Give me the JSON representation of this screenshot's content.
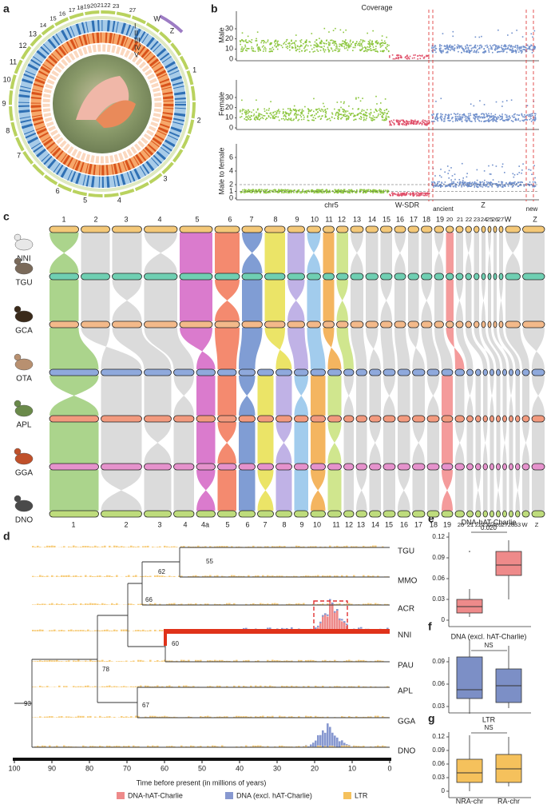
{
  "figure": {
    "panel_letters": [
      "a",
      "b",
      "c",
      "d",
      "e",
      "f",
      "g"
    ],
    "a": {
      "chromosomes": [
        "1",
        "2",
        "3",
        "4",
        "5",
        "6",
        "7",
        "8",
        "9",
        "10",
        "11",
        "12",
        "13",
        "14",
        "15",
        "16",
        "17",
        "18",
        "19",
        "20",
        "21",
        "22",
        "23",
        "27",
        "W",
        "Z"
      ],
      "tracks": [
        "I",
        "II",
        "III",
        "IV",
        "V"
      ]
    },
    "b": {
      "title": "Coverage",
      "rows": [
        {
          "label": "Male",
          "yticks": [
            "0",
            "10",
            "20",
            "30"
          ]
        },
        {
          "label": "Female",
          "yticks": [
            "0",
            "10",
            "20",
            "30"
          ]
        },
        {
          "label": "Male to female",
          "yticks": [
            "0",
            "1",
            "2",
            "4",
            "6"
          ]
        }
      ],
      "regions": [
        "chr5",
        "W-SDR",
        "Z"
      ],
      "strata": [
        "ancient",
        "new"
      ]
    },
    "c": {
      "species": [
        "NNI",
        "TGU",
        "GCA",
        "OTA",
        "APL",
        "GGA",
        "DNO"
      ],
      "top_chromosomes": [
        "1",
        "2",
        "3",
        "4",
        "5",
        "6",
        "7",
        "8",
        "9",
        "10",
        "11",
        "12",
        "13",
        "14",
        "15",
        "16",
        "17",
        "18",
        "19",
        "20",
        "21",
        "22",
        "23",
        "24",
        "25",
        "26",
        "27",
        "W",
        "Z"
      ],
      "bottom_chromosomes": [
        "1",
        "2",
        "3",
        "4",
        "4a",
        "5",
        "6",
        "7",
        "8",
        "9",
        "10",
        "11",
        "12",
        "13",
        "14",
        "15",
        "16",
        "17",
        "18",
        "19",
        "20",
        "21",
        "22",
        "23",
        "24",
        "26",
        "27",
        "28",
        "33",
        "W",
        "Z"
      ]
    },
    "d": {
      "taxa": [
        "TGU",
        "MMO",
        "ACR",
        "NNI",
        "PAU",
        "APL",
        "GGA",
        "DNO"
      ],
      "node_ages": [
        "55",
        "62",
        "66",
        "60",
        "78",
        "67",
        "93"
      ],
      "xticks": [
        "100",
        "90",
        "80",
        "70",
        "60",
        "50",
        "40",
        "30",
        "20",
        "10",
        "0"
      ],
      "xlabel": "Time before present (in millions of years)",
      "legend": [
        "DNA-hAT-Charlie",
        "DNA (excl. hAT-Charlie)",
        "LTR"
      ]
    },
    "e": {
      "title": "DNA-hAT-Charlie",
      "yticks": [
        "0",
        "0.03",
        "0.06",
        "0.09",
        "0.12"
      ],
      "test": "0.020"
    },
    "f": {
      "title": "DNA (excl. hAT-Charlie)",
      "yticks": [
        "0.03",
        "0.06",
        "0.09"
      ],
      "test": "NS"
    },
    "g": {
      "title": "LTR",
      "yticks": [
        "0",
        "0.03",
        "0.06",
        "0.09",
        "0.12"
      ],
      "test": "NS",
      "groups": [
        "NRA-chr",
        "RA-chr"
      ]
    }
  }
}
